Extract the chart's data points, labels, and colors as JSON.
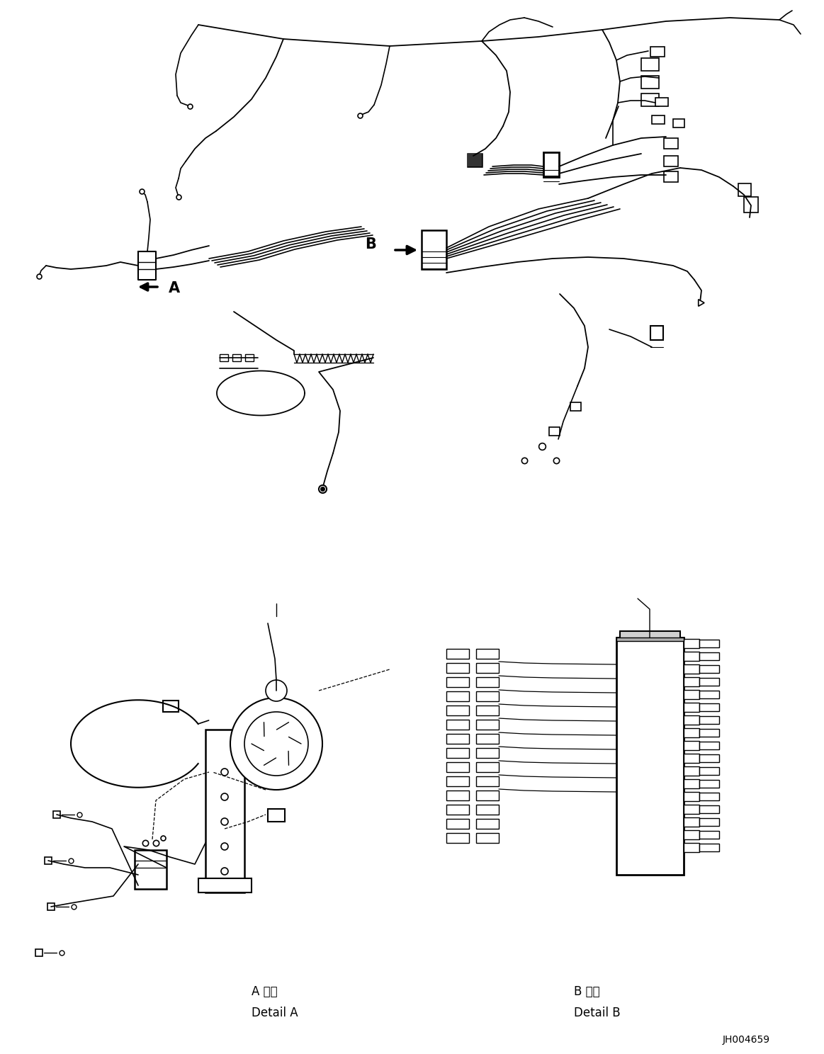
{
  "background_color": "#ffffff",
  "fig_width": 11.63,
  "fig_height": 14.88,
  "dpi": 100,
  "label_A": "A",
  "label_B": "B",
  "detail_a_line1": "A 詳細",
  "detail_a_line2": "Detail A",
  "detail_b_line1": "B 詳細",
  "detail_b_line2": "Detail B",
  "part_number": "JH004659",
  "text_color": "#000000",
  "line_color": "#000000",
  "lw_main": 1.4,
  "lw_thin": 0.9,
  "lw_thick": 2.0
}
